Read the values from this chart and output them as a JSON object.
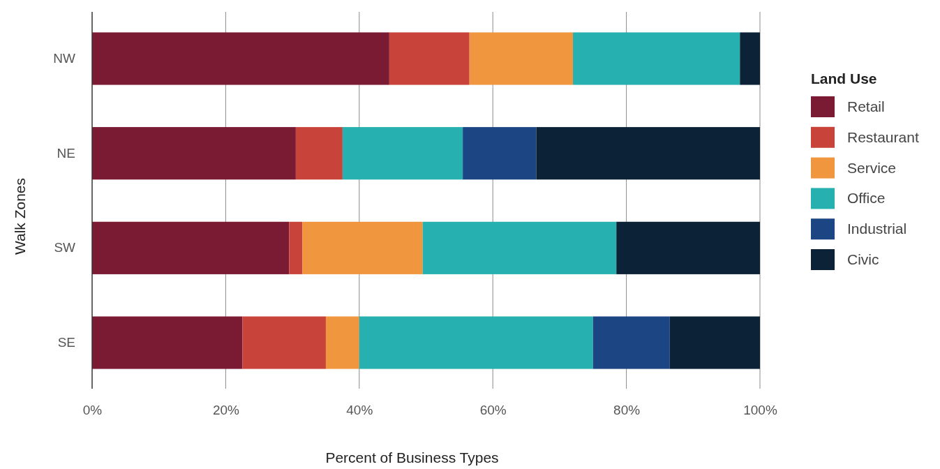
{
  "chart_data": {
    "type": "bar",
    "orientation": "horizontal",
    "stacked": true,
    "categories": [
      "NW",
      "NE",
      "SW",
      "SE"
    ],
    "series": [
      {
        "name": "Retail",
        "color": "#7a1a33",
        "values": [
          44.5,
          30.5,
          29.5,
          22.5
        ]
      },
      {
        "name": "Restaurant",
        "color": "#c8433a",
        "values": [
          12,
          7,
          2,
          12.5
        ]
      },
      {
        "name": "Service",
        "color": "#f0963e",
        "values": [
          15.5,
          null,
          18,
          5
        ]
      },
      {
        "name": "Office",
        "color": "#26b0b0",
        "values": [
          25,
          18,
          29,
          35
        ]
      },
      {
        "name": "Industrial",
        "color": "#1c4683",
        "values": [
          null,
          11,
          null,
          11.5
        ]
      },
      {
        "name": "Civic",
        "color": "#0c2237",
        "values": [
          3,
          33.5,
          21.5,
          13.5
        ]
      }
    ],
    "xlim": [
      0,
      100
    ],
    "xticks": [
      {
        "value": 0,
        "label": "0%"
      },
      {
        "value": 20,
        "label": "20%"
      },
      {
        "value": 40,
        "label": "40%"
      },
      {
        "value": 60,
        "label": "60%"
      },
      {
        "value": 80,
        "label": "80%"
      },
      {
        "value": 100,
        "label": "100%"
      }
    ],
    "xlabel": "Percent of Business Types",
    "ylabel": "Walk Zones",
    "legend_title": "Land Use",
    "legend": "right",
    "grid": "x"
  }
}
